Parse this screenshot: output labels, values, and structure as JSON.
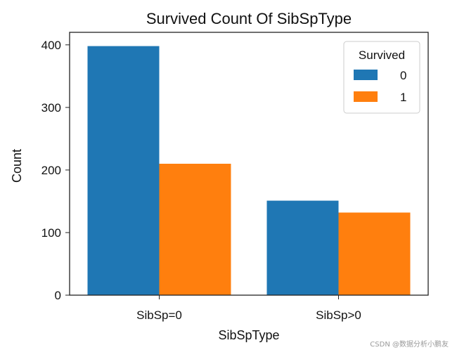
{
  "chart_data": {
    "type": "bar",
    "title": "Survived Count Of SibSpType",
    "xlabel": "SibSpType",
    "ylabel": "Count",
    "categories": [
      "SibSp=0",
      "SibSp>0"
    ],
    "series": [
      {
        "name": "0",
        "values": [
          398,
          151
        ],
        "color": "#1f77b4"
      },
      {
        "name": "1",
        "values": [
          210,
          132
        ],
        "color": "#ff7f0e"
      }
    ],
    "ylim": [
      0,
      420
    ],
    "yticks": [
      0,
      100,
      200,
      300,
      400
    ],
    "grid": false,
    "legend": {
      "title": "Survived",
      "placement": "top-right"
    }
  },
  "watermark": "CSDN @数据分析小鹏友"
}
